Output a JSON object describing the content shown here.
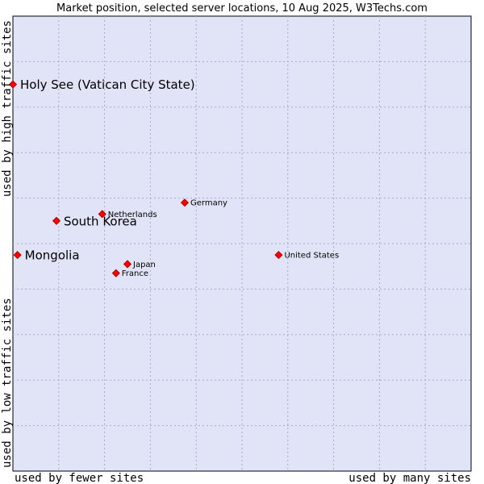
{
  "chart_data": {
    "type": "scatter",
    "title": "Market position, selected server locations, 10 Aug 2025, W3Techs.com",
    "xlabel_left": "used by fewer sites",
    "xlabel_right": "used by many sites",
    "ylabel_bottom": "used by low traffic sites",
    "ylabel_top": "used by high traffic sites",
    "xlim": [
      0,
      10
    ],
    "ylim": [
      0,
      10
    ],
    "grid": true,
    "colors": {
      "plot_background": "#e1e4f7",
      "grid": "#a9a9c8",
      "border": "#000000",
      "marker": "#ff0000",
      "marker_edge": "#990000",
      "text": "#000000"
    },
    "points": [
      {
        "label": "Holy See (Vatican City State)",
        "x": 0.0,
        "y": 8.5,
        "highlight": true
      },
      {
        "label": "South Korea",
        "x": 0.95,
        "y": 5.5,
        "highlight": true
      },
      {
        "label": "Mongolia",
        "x": 0.1,
        "y": 4.75,
        "highlight": true
      },
      {
        "label": "Netherlands",
        "x": 1.95,
        "y": 5.65,
        "highlight": false
      },
      {
        "label": "Germany",
        "x": 3.75,
        "y": 5.9,
        "highlight": false
      },
      {
        "label": "Japan",
        "x": 2.5,
        "y": 4.55,
        "highlight": false
      },
      {
        "label": "France",
        "x": 2.25,
        "y": 4.35,
        "highlight": false
      },
      {
        "label": "United States",
        "x": 5.8,
        "y": 4.75,
        "highlight": false
      }
    ]
  }
}
